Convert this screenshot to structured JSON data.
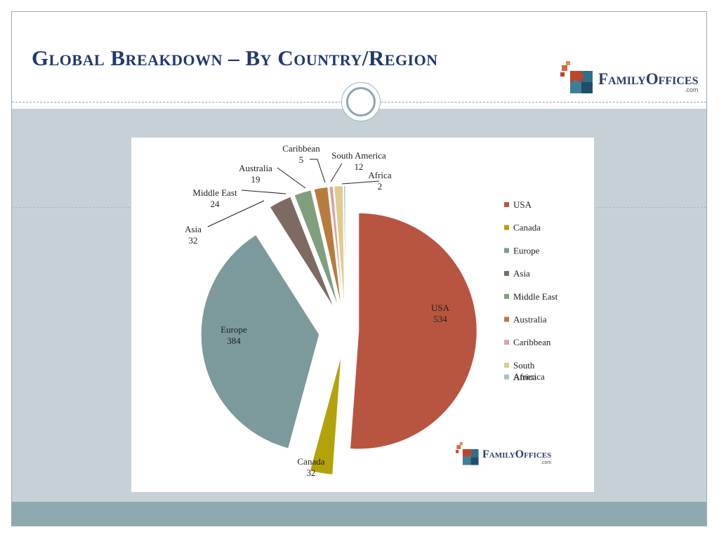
{
  "slide": {
    "title": "Global Breakdown – By Country/Region"
  },
  "brand": {
    "logo_text": "FamilyOffices",
    "logo_sub": ".com"
  },
  "colors": {
    "title": "#1f3a6e",
    "band": "#c5d1d7",
    "footer": "#8eaaaf"
  },
  "chart_data": {
    "type": "pie",
    "categories": [
      "USA",
      "Canada",
      "Europe",
      "Asia",
      "Middle East",
      "Australia",
      "Caribbean",
      "South America",
      "Africa"
    ],
    "values": [
      534,
      32,
      384,
      32,
      24,
      19,
      5,
      12,
      2
    ],
    "colors": [
      "#b85540",
      "#b3a20a",
      "#7c9a9b",
      "#7d6b62",
      "#7f9f7f",
      "#b97a3f",
      "#d9a3a3",
      "#dfcb8b",
      "#a9c1c8"
    ],
    "data_labels": [
      {
        "name": "USA",
        "value": "534"
      },
      {
        "name": "Canada",
        "value": "32"
      },
      {
        "name": "Europe",
        "value": "384"
      },
      {
        "name": "Asia",
        "value": "32"
      },
      {
        "name": "Middle East",
        "value": "24"
      },
      {
        "name": "Australia",
        "value": "19"
      },
      {
        "name": "Caribbean",
        "value": "5"
      },
      {
        "name": "South America",
        "value": "12"
      },
      {
        "name": "Africa",
        "value": "2"
      }
    ],
    "legend": {
      "position": "right",
      "items": [
        "USA",
        "Canada",
        "Europe",
        "Asia",
        "Middle East",
        "Australia",
        "Caribbean",
        "South\nAmerica",
        "Africa"
      ]
    }
  }
}
